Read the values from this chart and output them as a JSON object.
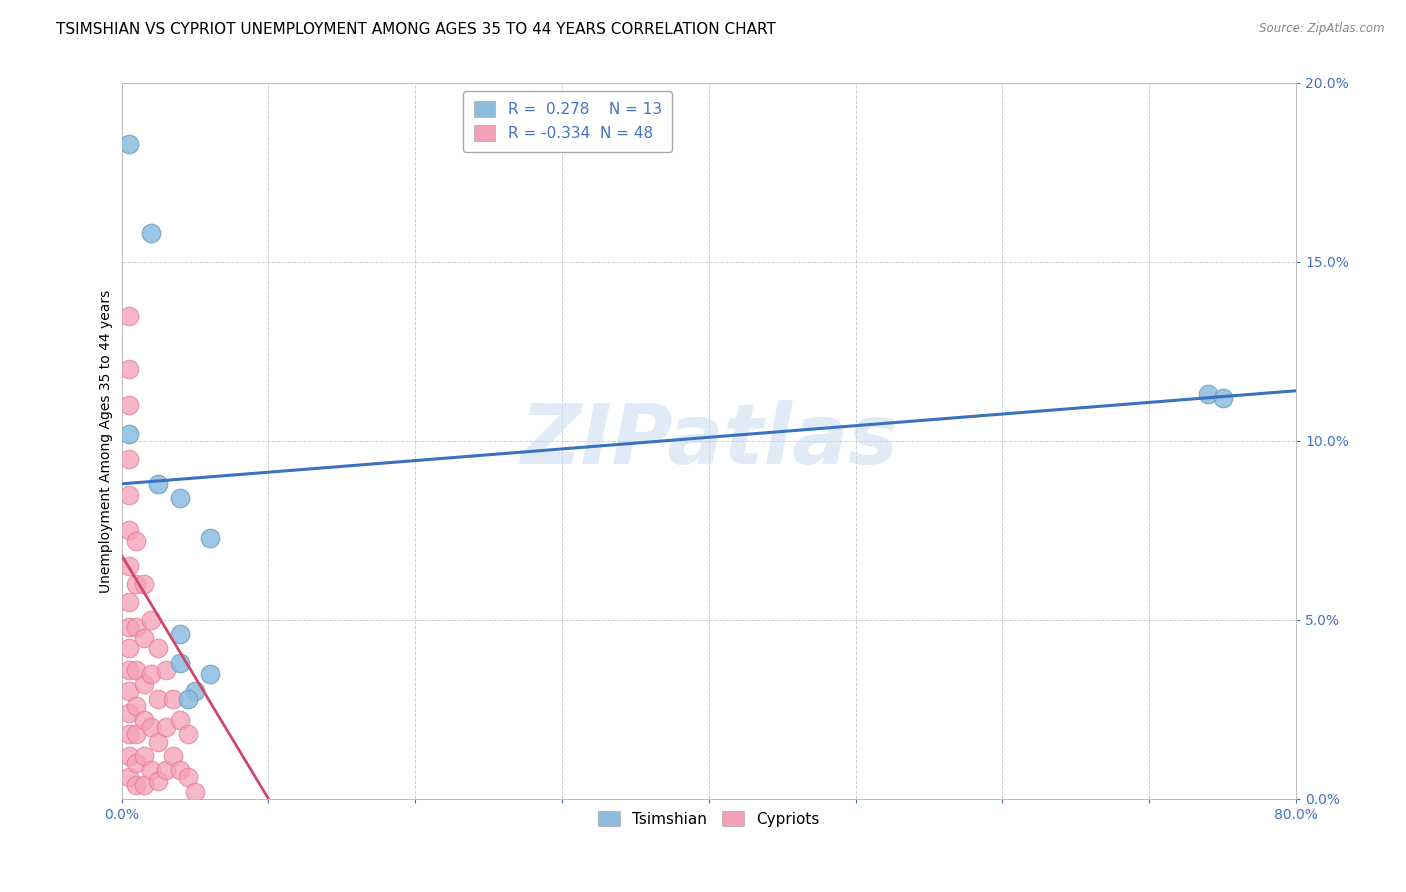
{
  "title": "TSIMSHIAN VS CYPRIOT UNEMPLOYMENT AMONG AGES 35 TO 44 YEARS CORRELATION CHART",
  "source": "Source: ZipAtlas.com",
  "ylabel": "Unemployment Among Ages 35 to 44 years",
  "xlabel": "",
  "xlim": [
    0.0,
    0.8
  ],
  "ylim": [
    0.0,
    0.2
  ],
  "xticks": [
    0.0,
    0.1,
    0.2,
    0.3,
    0.4,
    0.5,
    0.6,
    0.7,
    0.8
  ],
  "yticks": [
    0.0,
    0.05,
    0.1,
    0.15,
    0.2
  ],
  "xticklabels_sparse": [
    "0.0%",
    "",
    "",
    "",
    "",
    "",
    "",
    "",
    "80.0%"
  ],
  "yticklabels": [
    "0.0%",
    "5.0%",
    "10.0%",
    "15.0%",
    "20.0%"
  ],
  "tsimshian_color": "#8BBCDE",
  "cypriot_color": "#F4A0B8",
  "tsimshian_edge_color": "#6A9DC0",
  "cypriot_edge_color": "#E87898",
  "tsimshian_line_color": "#3A72C0",
  "cypriot_line_color": "#D04868",
  "tick_color": "#4472C4",
  "R_tsimshian": 0.278,
  "N_tsimshian": 13,
  "R_cypriot": -0.334,
  "N_cypriot": 48,
  "tsimshian_x": [
    0.005,
    0.02,
    0.005,
    0.025,
    0.04,
    0.06,
    0.04,
    0.04,
    0.06,
    0.74,
    0.75,
    0.05,
    0.045
  ],
  "tsimshian_y": [
    0.183,
    0.158,
    0.102,
    0.088,
    0.084,
    0.073,
    0.046,
    0.038,
    0.035,
    0.113,
    0.112,
    0.03,
    0.028
  ],
  "cypriot_x": [
    0.005,
    0.005,
    0.005,
    0.005,
    0.005,
    0.005,
    0.005,
    0.005,
    0.005,
    0.005,
    0.005,
    0.005,
    0.005,
    0.005,
    0.005,
    0.005,
    0.01,
    0.01,
    0.01,
    0.01,
    0.01,
    0.01,
    0.01,
    0.01,
    0.015,
    0.015,
    0.015,
    0.015,
    0.015,
    0.015,
    0.02,
    0.02,
    0.02,
    0.02,
    0.025,
    0.025,
    0.025,
    0.025,
    0.03,
    0.03,
    0.03,
    0.035,
    0.035,
    0.04,
    0.04,
    0.045,
    0.045,
    0.05
  ],
  "cypriot_y": [
    0.135,
    0.12,
    0.11,
    0.095,
    0.085,
    0.075,
    0.065,
    0.055,
    0.048,
    0.042,
    0.036,
    0.03,
    0.024,
    0.018,
    0.012,
    0.006,
    0.072,
    0.06,
    0.048,
    0.036,
    0.026,
    0.018,
    0.01,
    0.004,
    0.06,
    0.045,
    0.032,
    0.022,
    0.012,
    0.004,
    0.05,
    0.035,
    0.02,
    0.008,
    0.042,
    0.028,
    0.016,
    0.005,
    0.036,
    0.02,
    0.008,
    0.028,
    0.012,
    0.022,
    0.008,
    0.018,
    0.006,
    0.002
  ],
  "tsimshian_line_x0": 0.0,
  "tsimshian_line_y0": 0.088,
  "tsimshian_line_x1": 0.8,
  "tsimshian_line_y1": 0.114,
  "cypriot_line_x0": 0.0,
  "cypriot_line_y0": 0.068,
  "cypriot_line_x1": 0.1,
  "cypriot_line_y1": 0.0,
  "watermark": "ZIPatlas",
  "background_color": "#FFFFFF",
  "grid_color": "#CCCCCC",
  "title_fontsize": 11,
  "axis_label_fontsize": 10,
  "tick_fontsize": 10,
  "legend_fontsize": 11
}
